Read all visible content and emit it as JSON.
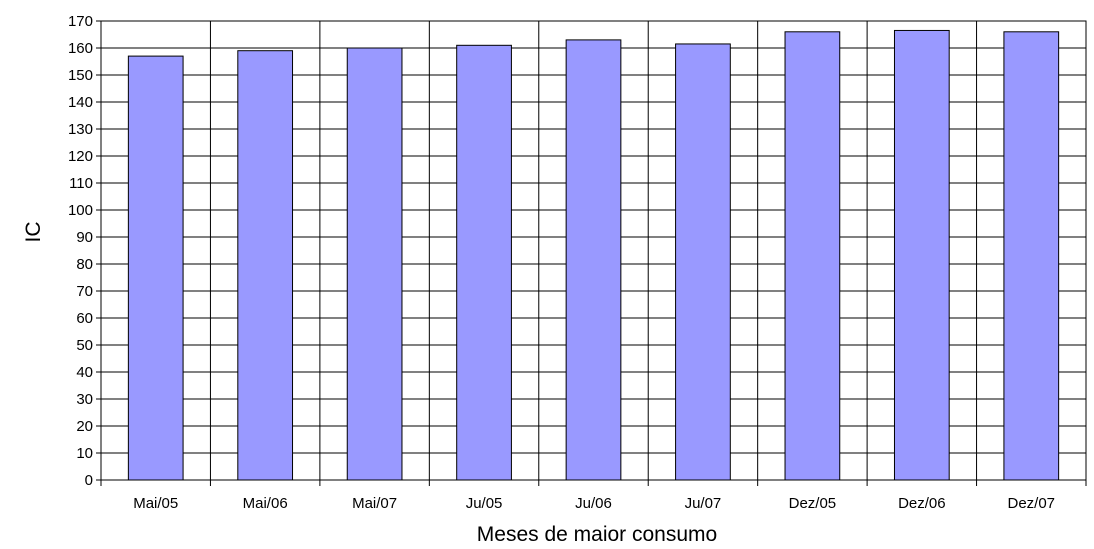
{
  "chart_data": {
    "type": "bar",
    "categories": [
      "Mai/05",
      "Mai/06",
      "Mai/07",
      "Ju/05",
      "Ju/06",
      "Ju/07",
      "Dez/05",
      "Dez/06",
      "Dez/07"
    ],
    "series": [
      {
        "values": [
          157,
          159,
          160,
          161,
          163,
          161.5,
          166,
          166.5,
          166
        ]
      }
    ],
    "xlabel": "Meses de maior consumo",
    "ylabel": "IC",
    "ylim": [
      0,
      170
    ],
    "yticks": [
      0,
      10,
      20,
      30,
      40,
      50,
      60,
      70,
      80,
      90,
      100,
      110,
      120,
      130,
      140,
      150,
      160,
      170
    ],
    "grid": true,
    "bar_color": "#9999ff",
    "legend": "none"
  }
}
